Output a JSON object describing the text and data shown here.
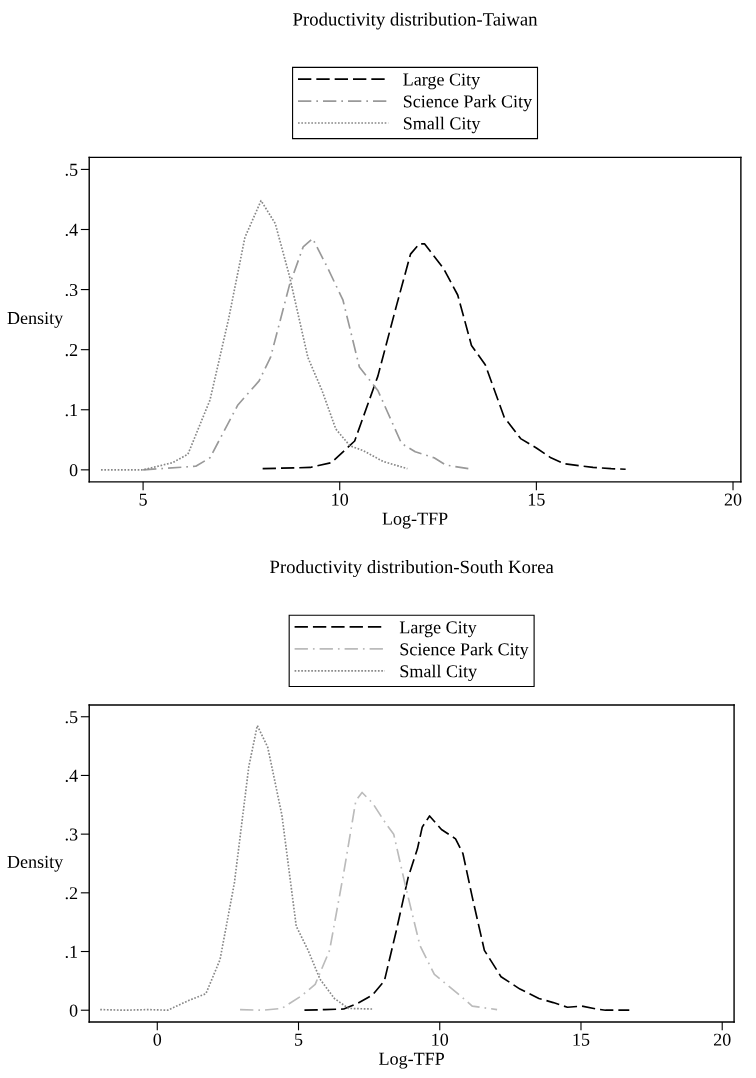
{
  "chart_data": [
    {
      "type": "line",
      "title": "Productivity distribution-Taiwan",
      "xlabel": "Log-TFP",
      "ylabel": "Density",
      "xlim": [
        3.63,
        20.2
      ],
      "ylim": [
        -0.02,
        0.52
      ],
      "xticks": [
        5,
        10,
        15,
        20
      ],
      "yticks": [
        {
          "value": 0,
          "label": "0"
        },
        {
          "value": 0.1,
          "label": ".1"
        },
        {
          "value": 0.2,
          "label": ".2"
        },
        {
          "value": 0.3,
          "label": ".3"
        },
        {
          "value": 0.4,
          "label": ".4"
        },
        {
          "value": 0.5,
          "label": ".5"
        }
      ],
      "grid": false,
      "legend": "top",
      "series": [
        {
          "name": "Large City",
          "color": "#000000",
          "line_style": "dashed",
          "x": [
            8.04,
            9.25,
            9.79,
            10.38,
            10.97,
            11.45,
            11.8,
            12.02,
            12.16,
            12.64,
            13.0,
            13.35,
            13.7,
            14.18,
            14.6,
            15.01,
            15.37,
            15.72,
            16.44,
            16.9,
            17.27
          ],
          "values": [
            0.002,
            0.004,
            0.012,
            0.048,
            0.156,
            0.275,
            0.359,
            0.376,
            0.376,
            0.335,
            0.291,
            0.207,
            0.175,
            0.088,
            0.052,
            0.036,
            0.02,
            0.01,
            0.004,
            0.002,
            0.001
          ]
        },
        {
          "name": "Science Park City",
          "color": "#999999",
          "line_style": "dashdot",
          "x": [
            5.0,
            6.34,
            6.7,
            7.41,
            7.95,
            8.24,
            8.72,
            9.07,
            9.31,
            9.67,
            10.08,
            10.5,
            10.97,
            11.57,
            11.92,
            12.4,
            12.7,
            13.27
          ],
          "values": [
            0.0,
            0.006,
            0.02,
            0.108,
            0.148,
            0.187,
            0.307,
            0.371,
            0.385,
            0.339,
            0.283,
            0.171,
            0.132,
            0.044,
            0.03,
            0.02,
            0.008,
            0.002
          ]
        },
        {
          "name": "Small City",
          "color": "#888888",
          "line_style": "dotted",
          "x": [
            3.93,
            5.0,
            5.75,
            6.14,
            6.7,
            7.17,
            7.59,
            8.0,
            8.36,
            8.72,
            9.19,
            9.55,
            9.9,
            10.26,
            10.6,
            11.1,
            11.72
          ],
          "values": [
            0.0,
            0.0,
            0.012,
            0.026,
            0.116,
            0.25,
            0.387,
            0.448,
            0.41,
            0.323,
            0.187,
            0.132,
            0.068,
            0.04,
            0.032,
            0.014,
            0.002
          ]
        }
      ]
    },
    {
      "type": "line",
      "title": "Productivity distribution-South Korea",
      "xlabel": "Log-TFP",
      "ylabel": "Density",
      "xlim": [
        -2.41,
        20.42
      ],
      "ylim": [
        -0.02,
        0.52
      ],
      "xticks": [
        0,
        5,
        10,
        15,
        20
      ],
      "yticks": [
        {
          "value": 0,
          "label": "0"
        },
        {
          "value": 0.1,
          "label": ".1"
        },
        {
          "value": 0.2,
          "label": ".2"
        },
        {
          "value": 0.3,
          "label": ".3"
        },
        {
          "value": 0.4,
          "label": ".4"
        },
        {
          "value": 0.5,
          "label": ".5"
        }
      ],
      "grid": false,
      "legend": "top",
      "series": [
        {
          "name": "Large City",
          "color": "#000000",
          "line_style": "dashed",
          "x": [
            5.21,
            5.93,
            6.6,
            7.11,
            7.62,
            8.04,
            8.46,
            8.88,
            9.21,
            9.38,
            9.64,
            10.06,
            10.56,
            10.82,
            11.15,
            11.58,
            12.17,
            12.84,
            13.51,
            14.02,
            14.52,
            15.03,
            15.54,
            15.87,
            16.71
          ],
          "values": [
            0.0,
            0.001,
            0.002,
            0.012,
            0.026,
            0.05,
            0.135,
            0.226,
            0.275,
            0.312,
            0.331,
            0.308,
            0.292,
            0.267,
            0.193,
            0.102,
            0.057,
            0.036,
            0.02,
            0.013,
            0.005,
            0.007,
            0.002,
            0.0,
            0.0
          ]
        },
        {
          "name": "Science Park City",
          "color": "#bbbbbb",
          "line_style": "dashdot",
          "x": [
            2.93,
            3.74,
            4.41,
            5.09,
            5.59,
            6.1,
            6.6,
            7.03,
            7.25,
            7.62,
            8.12,
            8.37,
            8.8,
            9.3,
            9.81,
            10.65,
            11.15,
            12.03
          ],
          "values": [
            0.001,
            0.0,
            0.003,
            0.024,
            0.044,
            0.102,
            0.234,
            0.357,
            0.371,
            0.353,
            0.316,
            0.3,
            0.209,
            0.11,
            0.061,
            0.028,
            0.007,
            0.001
          ]
        },
        {
          "name": "Small City",
          "color": "#888888",
          "line_style": "dotted",
          "x": [
            -2.02,
            -1.15,
            -0.3,
            0.37,
            1.13,
            1.72,
            2.22,
            2.73,
            3.24,
            3.54,
            3.91,
            4.41,
            4.92,
            5.34,
            5.76,
            6.27,
            6.77,
            7.62
          ],
          "values": [
            0.001,
            0.0,
            0.001,
            0.0,
            0.017,
            0.028,
            0.086,
            0.217,
            0.415,
            0.485,
            0.448,
            0.333,
            0.143,
            0.102,
            0.053,
            0.02,
            0.003,
            0.002
          ]
        }
      ]
    }
  ]
}
